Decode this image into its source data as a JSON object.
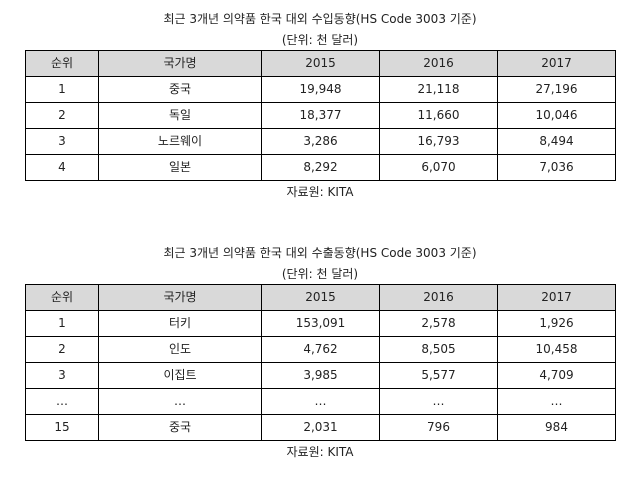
{
  "import_table": {
    "title": "최근 3개년 의약품 한국 대외 수입동향(HS Code 3003 기준)",
    "unit": "(단위: 천 달러)",
    "headers": [
      "순위",
      "국가명",
      "2015",
      "2016",
      "2017"
    ],
    "rows": [
      [
        "1",
        "중국",
        "19,948",
        "21,118",
        "27,196"
      ],
      [
        "2",
        "독일",
        "18,377",
        "11,660",
        "10,046"
      ],
      [
        "3",
        "노르웨이",
        "3,286",
        "16,793",
        "8,494"
      ],
      [
        "4",
        "일본",
        "8,292",
        "6,070",
        "7,036"
      ]
    ],
    "source": "자료원: KITA"
  },
  "export_table": {
    "title": "최근 3개년 의약품 한국 대외 수출동향(HS Code 3003 기준)",
    "unit": "(단위: 천 달러)",
    "headers": [
      "순위",
      "국가명",
      "2015",
      "2016",
      "2017"
    ],
    "rows": [
      [
        "1",
        "터키",
        "153,091",
        "2,578",
        "1,926"
      ],
      [
        "2",
        "인도",
        "4,762",
        "8,505",
        "10,458"
      ],
      [
        "3",
        "이집트",
        "3,985",
        "5,577",
        "4,709"
      ],
      [
        "…",
        "…",
        "…",
        "…",
        "…"
      ],
      [
        "15",
        "중국",
        "2,031",
        "796",
        "984"
      ]
    ],
    "source": "자료원: KITA"
  }
}
